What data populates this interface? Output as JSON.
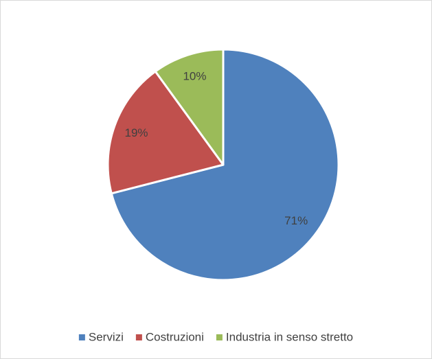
{
  "chart_data": {
    "type": "pie",
    "categories": [
      "Servizi",
      "Costruzioni",
      "Industria in senso stretto"
    ],
    "values": [
      71,
      19,
      10
    ],
    "value_labels": [
      "71%",
      "19%",
      "10%"
    ],
    "colors": [
      "#4f81bd",
      "#c0504d",
      "#9bbb59"
    ],
    "legend": "bottom"
  }
}
